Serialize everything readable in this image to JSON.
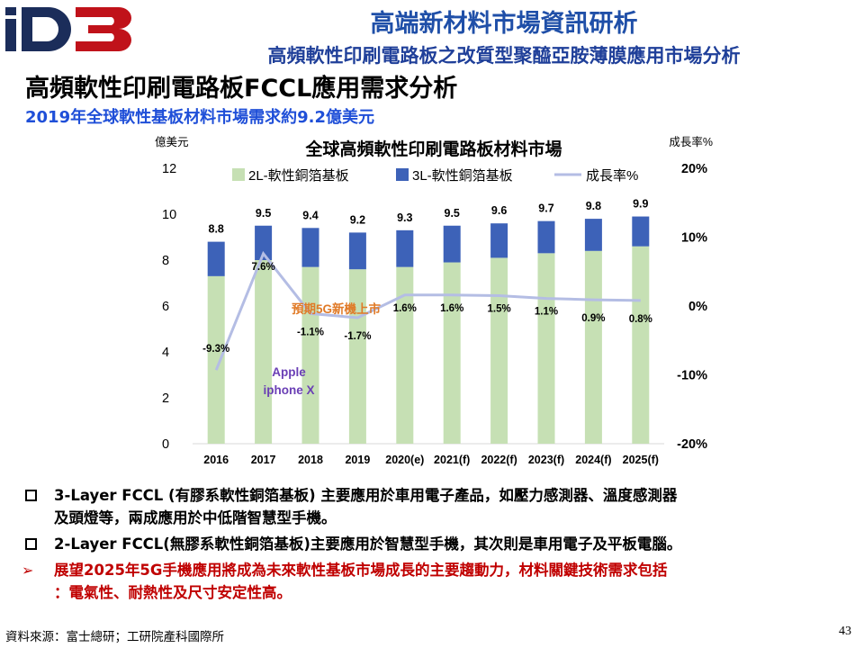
{
  "header": {
    "logo_text": "iD3",
    "org_title": "高端新材料市場資訊研析",
    "sub_title": "高頻軟性印刷電路板之改質型聚醯亞胺薄膜應用市場分析"
  },
  "slide": {
    "title": "高頻軟性印刷電路板FCCL應用需求分析",
    "subtitle": "2019年全球軟性基板材料市場需求約9.2億美元"
  },
  "chart_data": {
    "type": "bar",
    "stacked": true,
    "title": "全球高頻軟性印刷電路板材料市場",
    "y_left_unit": "億美元",
    "y_right_unit": "成長率%",
    "categories": [
      "2016",
      "2017",
      "2018",
      "2019",
      "2020(e)",
      "2021(f)",
      "2022(f)",
      "2023(f)",
      "2024(f)",
      "2025(f)"
    ],
    "ylim": [
      0,
      12
    ],
    "y_ticks": [
      "0",
      "2",
      "4",
      "6",
      "8",
      "10",
      "12"
    ],
    "y2lim": [
      -20,
      20
    ],
    "y2_ticks": [
      "-20%",
      "-10%",
      "0%",
      "10%",
      "20%"
    ],
    "series": [
      {
        "name": "2L-軟性銅箔基板",
        "color": "#c6e0b4",
        "values": [
          7.3,
          8.0,
          7.7,
          7.6,
          7.7,
          7.9,
          8.1,
          8.3,
          8.4,
          8.6
        ]
      },
      {
        "name": "3L-軟性銅箔基板",
        "color": "#3d62b8",
        "values": [
          1.5,
          1.5,
          1.7,
          1.6,
          1.6,
          1.6,
          1.5,
          1.4,
          1.4,
          1.3
        ]
      }
    ],
    "totals": [
      "8.8",
      "9.5",
      "9.4",
      "9.2",
      "9.3",
      "9.5",
      "9.6",
      "9.7",
      "9.8",
      "9.9"
    ],
    "growth": {
      "name": "成長率%",
      "color": "#b4bde4",
      "values": [
        -9.3,
        7.6,
        -1.1,
        -1.7,
        1.6,
        1.6,
        1.5,
        1.1,
        0.9,
        0.8
      ],
      "labels": [
        "-9.3%",
        "7.6%",
        "-1.1%",
        "-1.7%",
        "1.6%",
        "1.6%",
        "1.5%",
        "1.1%",
        "0.9%",
        "0.8%"
      ]
    },
    "annotations": {
      "apple_line1": "Apple",
      "apple_line2": "iphone X",
      "forecast": "預期5G新機上市"
    },
    "grid": false,
    "legend": "top"
  },
  "bullets": [
    {
      "text": "3-Layer FCCL (有膠系軟性銅箔基板)  主要應用於車用電子產品，如壓力感測器、溫度感測器"
    },
    {
      "text": "及頭燈等，兩成應用於中低階智慧型手機。"
    },
    {
      "text": "2-Layer FCCL(無膠系軟性銅箔基板)主要應用於智慧型手機，其次則是車用電子及平板電腦。"
    },
    {
      "text": "展望2025年5G手機應用將成為未來軟性基板市場成長的主要趨動力，材料關鍵技術需求包括"
    },
    {
      "text": "：電氣性、耐熱性及尺寸安定性高。"
    }
  ],
  "footer": {
    "source": "資料來源：富士總研；工研院產科國際所",
    "page_number": "43"
  }
}
